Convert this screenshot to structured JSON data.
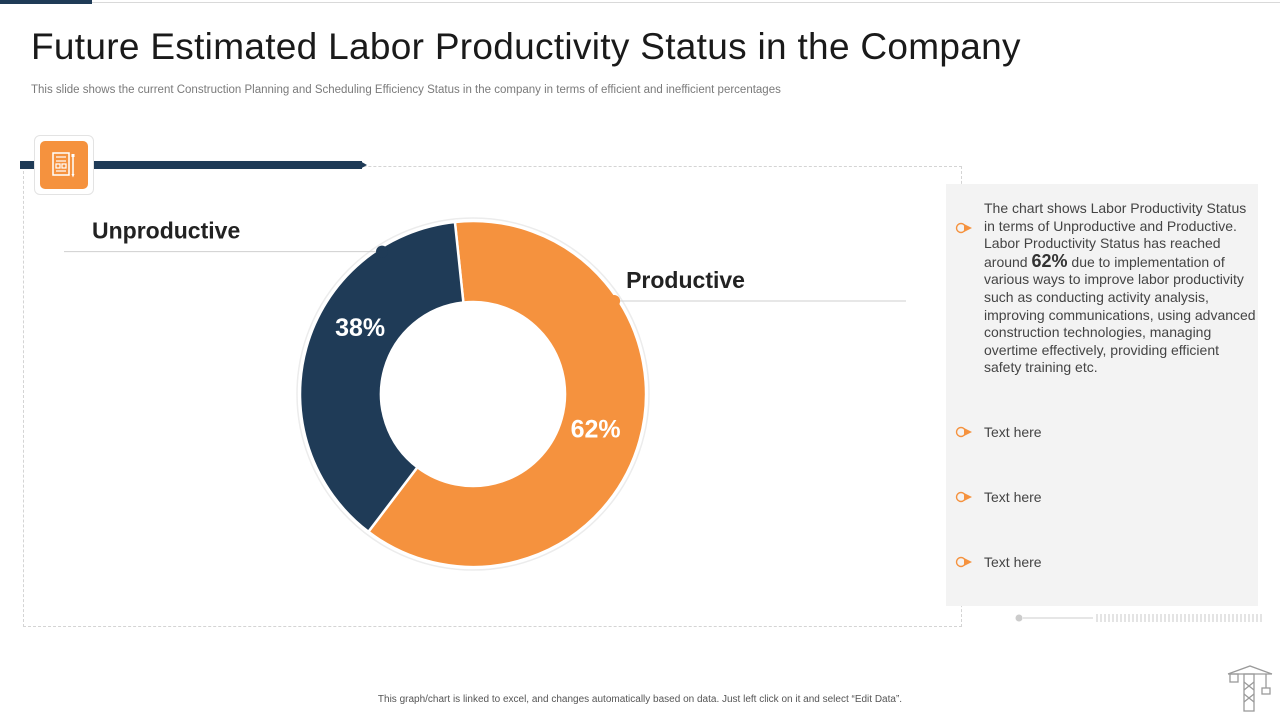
{
  "slide": {
    "title": "Future Estimated Labor Productivity Status in the Company",
    "subtitle": "This slide shows the current Construction Planning and Scheduling Efficiency Status in the company in terms of efficient and inefficient percentages",
    "footer": "This graph/chart is linked to excel, and changes automatically based on data. Just left click on it and select “Edit Data”.",
    "header_icon": "building-plan-icon",
    "corner_icon": "crane-icon"
  },
  "colors": {
    "accent": "#f5923e",
    "navy": "#1f3b57",
    "panel_bg": "#f3f3f3",
    "leader_line": "#cfcfcf"
  },
  "chart_data": {
    "type": "pie",
    "variant": "donut",
    "title": "",
    "categories": [
      "Productive",
      "Unproductive"
    ],
    "values": [
      62,
      38
    ],
    "value_labels": [
      "62%",
      "38%"
    ],
    "colors": [
      "#f5923e",
      "#1f3b57"
    ],
    "legend": "callout labels"
  },
  "panel": {
    "description_before": "The chart shows Labor Productivity Status in terms of Unproductive and Productive. Labor Productivity Status has reached around",
    "highlight": "62%",
    "description_after": "due to implementation of various ways to improve labor productivity such as conducting activity analysis, improving communications, using advanced construction technologies, managing overtime effectively, providing efficient safety training etc.",
    "items": [
      "Text here",
      "Text here",
      "Text here"
    ]
  }
}
